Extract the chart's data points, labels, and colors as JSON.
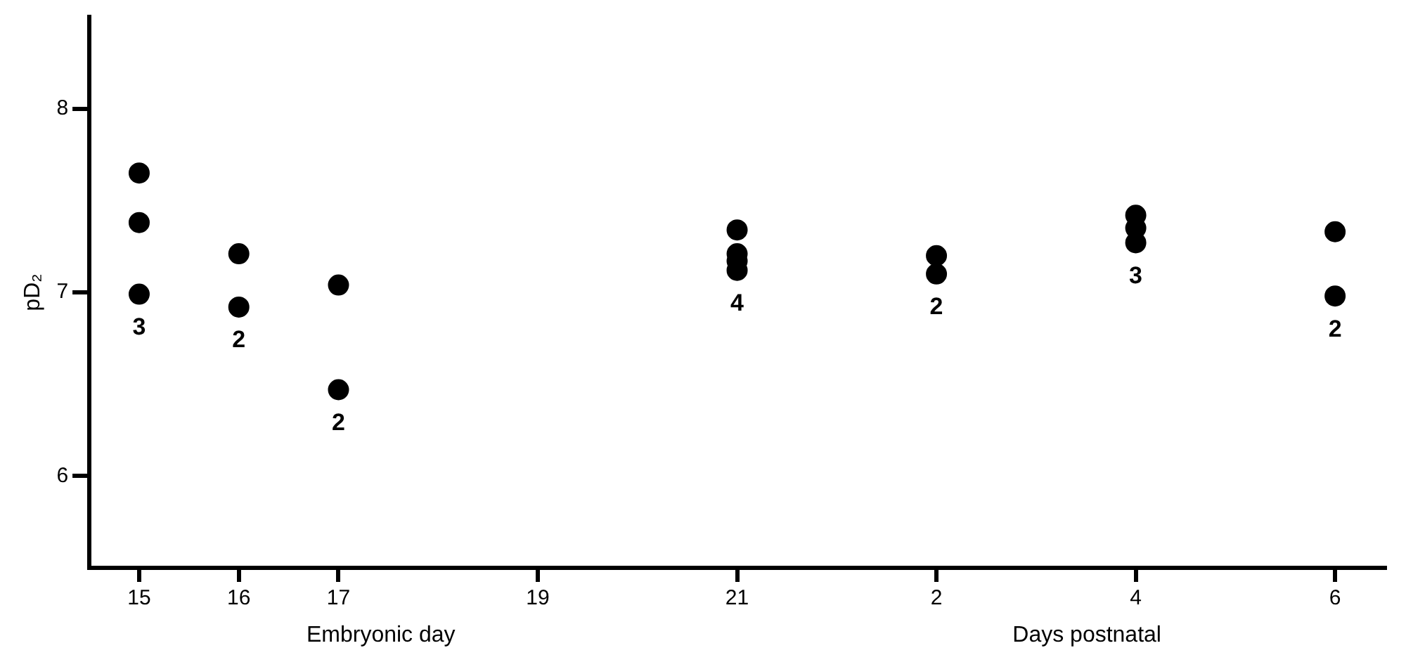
{
  "chart_data": {
    "type": "scatter",
    "ylabel": "pD₂",
    "marker": "circle",
    "grid": false,
    "legend": false,
    "categories": [
      "15",
      "16",
      "17",
      null,
      "19",
      null,
      "21",
      null,
      "2",
      null,
      "4",
      null,
      "6"
    ],
    "ylim": [
      5.5,
      8.5
    ],
    "yticks": [
      6,
      7,
      8
    ],
    "series": [
      {
        "color": "#000000",
        "x": [
          "15",
          "15",
          "15",
          "16",
          "16",
          "17",
          "17",
          "21",
          "21",
          "21",
          "21",
          "2",
          "2",
          "4",
          "4",
          "4",
          "6",
          "6"
        ],
        "values": [
          7.65,
          7.38,
          6.99,
          7.21,
          6.92,
          7.04,
          6.47,
          7.34,
          7.21,
          7.17,
          7.12,
          7.2,
          7.1,
          7.42,
          7.35,
          7.27,
          7.33,
          6.98
        ]
      }
    ],
    "annotations": [
      "3",
      "2",
      "2",
      "4",
      "2",
      "3",
      "2",
      "Embryonic day",
      "Days postnatal"
    ]
  }
}
